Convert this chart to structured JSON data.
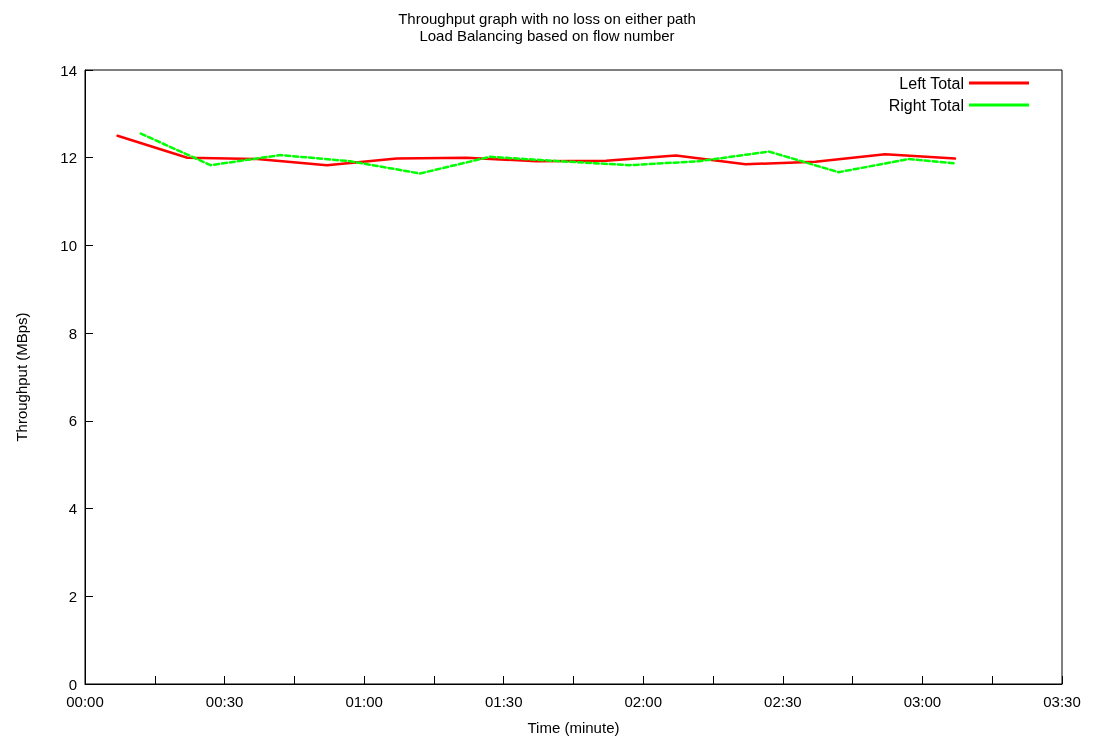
{
  "chart_data": {
    "type": "line",
    "title": "Throughput graph with no loss on either path",
    "subtitle": "Load Balancing based on flow number",
    "xlabel": "Time (minute)",
    "ylabel": "Throughput (MBps)",
    "xlim": [
      0,
      210
    ],
    "xticks": [
      {
        "value": 0,
        "label": "00:00"
      },
      {
        "value": 15,
        "label": null
      },
      {
        "value": 30,
        "label": "00:30"
      },
      {
        "value": 45,
        "label": null
      },
      {
        "value": 60,
        "label": "01:00"
      },
      {
        "value": 75,
        "label": null
      },
      {
        "value": 90,
        "label": "01:30"
      },
      {
        "value": 105,
        "label": null
      },
      {
        "value": 120,
        "label": "02:00"
      },
      {
        "value": 135,
        "label": null
      },
      {
        "value": 150,
        "label": "02:30"
      },
      {
        "value": 165,
        "label": null
      },
      {
        "value": 180,
        "label": "03:00"
      },
      {
        "value": 195,
        "label": null
      },
      {
        "value": 210,
        "label": "03:30"
      }
    ],
    "ylim": [
      0,
      14
    ],
    "yticks": [
      0,
      2,
      4,
      6,
      8,
      10,
      12,
      14
    ],
    "grid": false,
    "legend": "top right",
    "marker": "none",
    "series": [
      {
        "name": "Left Total",
        "color": "#ff0000",
        "line_style": "solid",
        "x": [
          7,
          22,
          37,
          52,
          67,
          82,
          97,
          112,
          127,
          142,
          157,
          172,
          187
        ],
        "values": [
          12.5,
          12.0,
          11.97,
          11.83,
          11.98,
          12.0,
          11.92,
          11.93,
          12.05,
          11.85,
          11.91,
          12.08,
          11.98
        ]
      },
      {
        "name": "Right Total",
        "color": "#00ff00",
        "line_style": "dashed",
        "x": [
          12,
          27,
          42,
          57,
          72,
          87,
          102,
          117,
          132,
          147,
          162,
          177,
          187
        ],
        "values": [
          12.55,
          11.83,
          12.06,
          11.92,
          11.64,
          12.02,
          11.92,
          11.83,
          11.92,
          12.14,
          11.67,
          11.97,
          11.87
        ]
      }
    ]
  }
}
